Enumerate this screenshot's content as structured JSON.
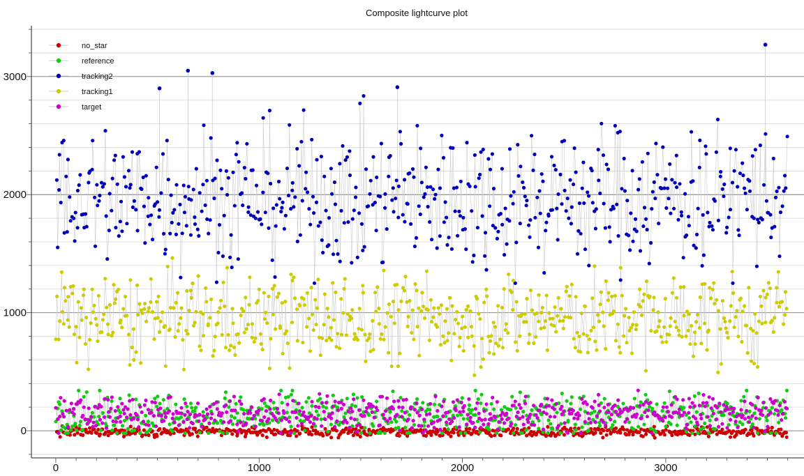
{
  "chart_data": {
    "type": "scatter",
    "title": "Composite lightcurve plot",
    "xlabel": "",
    "ylabel": "",
    "xlim": [
      -120,
      3680
    ],
    "ylim": [
      -230,
      3430
    ],
    "x_ticks": [
      0,
      1000,
      2000,
      3000
    ],
    "y_ticks": [
      0,
      1000,
      2000,
      3000
    ],
    "grid": true,
    "legend_position": "top-left",
    "n_points": 3600,
    "series": [
      {
        "name": "no_star",
        "color": "#cc0000",
        "mean": -10,
        "spread": 20,
        "min": -60,
        "max": 40,
        "line_color": "#cccccc"
      },
      {
        "name": "reference",
        "color": "#11cc11",
        "mean": 130,
        "spread": 95,
        "min": -20,
        "max": 340,
        "line_color": "#cccccc"
      },
      {
        "name": "tracking2",
        "color": "#0000bb",
        "mean": 1980,
        "spread": 300,
        "min": 1250,
        "max": 3270,
        "line_color": "#cccccc"
      },
      {
        "name": "tracking1",
        "color": "#cccc00",
        "mean": 950,
        "spread": 190,
        "min": 450,
        "max": 1590,
        "line_color": "#cccccc"
      },
      {
        "name": "target",
        "color": "#cc00cc",
        "mean": 150,
        "spread": 70,
        "min": -20,
        "max": 370,
        "line_color": "#cccccc"
      }
    ],
    "notable_points": [
      {
        "series": "tracking2",
        "x": 3490,
        "y": 3270
      },
      {
        "series": "tracking2",
        "x": 650,
        "y": 3050
      },
      {
        "series": "tracking2",
        "x": 770,
        "y": 3030
      },
      {
        "series": "tracking2",
        "x": 1680,
        "y": 2910
      },
      {
        "series": "tracking2",
        "x": 510,
        "y": 2900
      }
    ]
  }
}
